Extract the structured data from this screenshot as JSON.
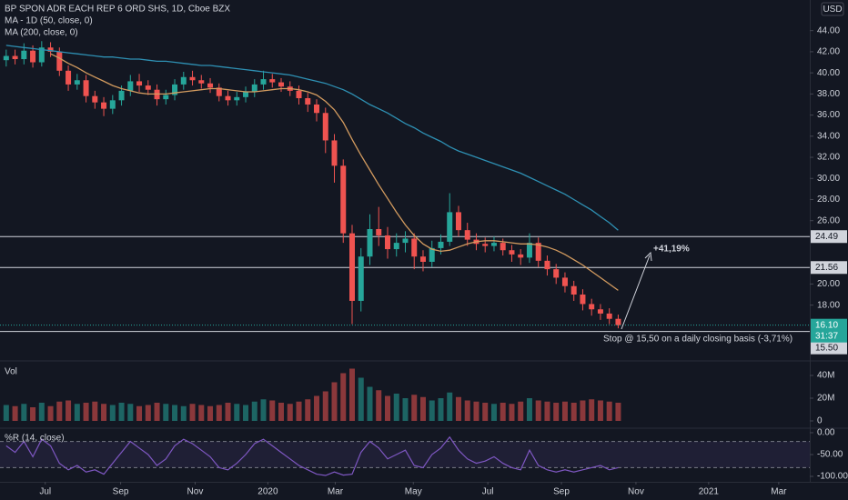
{
  "chart_data": [
    {
      "type": "candlestick",
      "title": "BP SPON ADR EACH REP 6 ORD SHS, 1D, Cboe BZX",
      "currency": "USD",
      "up_color": "#26a69a",
      "down_color": "#ef5350",
      "open": [
        41.2,
        41.6,
        41.3,
        42.1,
        41.0,
        42.4,
        42.0,
        40.2,
        38.9,
        39.3,
        37.8,
        37.2,
        36.6,
        37.4,
        38.3,
        39.2,
        38.8,
        38.4,
        37.5,
        37.9,
        38.9,
        39.6,
        39.3,
        39.0,
        38.6,
        37.8,
        37.4,
        37.7,
        38.2,
        38.9,
        39.4,
        39.1,
        38.7,
        38.3,
        37.6,
        37.0,
        36.2,
        33.6,
        31.2,
        24.8,
        18.4,
        22.6,
        25.2,
        24.6,
        23.3,
        23.9,
        24.3,
        22.6,
        22.1,
        23.4,
        24.0,
        26.8,
        25.1,
        24.2,
        23.8,
        23.6,
        23.9,
        23.2,
        22.8,
        22.5,
        23.9,
        22.2,
        21.4,
        20.6,
        19.8,
        19.0,
        18.1,
        17.6,
        17.2,
        16.7
      ],
      "high": [
        42.2,
        42.2,
        42.8,
        42.6,
        43.0,
        42.9,
        42.4,
        40.7,
        39.9,
        39.8,
        38.3,
        37.7,
        37.9,
        38.8,
        39.8,
        39.9,
        39.3,
        38.9,
        38.4,
        39.4,
        40.1,
        40.2,
        39.8,
        39.5,
        39.0,
        38.3,
        38.2,
        38.7,
        39.4,
        40.2,
        39.9,
        39.5,
        39.2,
        38.8,
        38.1,
        37.5,
        36.7,
        34.2,
        31.8,
        25.6,
        23.4,
        26.6,
        27.3,
        25.4,
        24.8,
        25.0,
        24.8,
        23.2,
        24.1,
        24.7,
        28.6,
        27.4,
        25.8,
        24.8,
        24.4,
        24.5,
        24.3,
        23.7,
        23.3,
        24.8,
        24.4,
        22.7,
        21.9,
        21.1,
        20.3,
        19.5,
        18.6,
        18.1,
        17.7,
        17.1
      ],
      "low": [
        40.6,
        40.8,
        40.8,
        40.5,
        40.6,
        41.5,
        39.7,
        38.3,
        38.4,
        37.2,
        36.6,
        35.9,
        36.1,
        36.9,
        37.8,
        38.2,
        37.9,
        36.9,
        37.0,
        37.4,
        38.4,
        38.8,
        38.5,
        38.1,
        37.3,
        36.9,
        36.9,
        37.2,
        37.7,
        38.4,
        38.6,
        38.2,
        37.8,
        37.0,
        36.3,
        35.4,
        32.4,
        29.6,
        23.9,
        16.2,
        17.4,
        21.8,
        23.6,
        22.4,
        22.6,
        23.0,
        21.4,
        21.2,
        21.6,
        22.8,
        23.6,
        24.5,
        23.6,
        23.2,
        23.0,
        23.1,
        22.7,
        22.1,
        21.8,
        22.0,
        21.6,
        20.8,
        20.0,
        19.2,
        18.4,
        17.5,
        17.0,
        16.6,
        16.2,
        15.8
      ],
      "close": [
        41.6,
        41.3,
        42.1,
        41.0,
        42.4,
        42.0,
        40.2,
        38.9,
        39.3,
        37.8,
        37.2,
        36.6,
        37.4,
        38.3,
        39.2,
        38.8,
        38.4,
        37.5,
        37.9,
        38.9,
        39.6,
        39.3,
        39.0,
        38.6,
        37.8,
        37.4,
        37.7,
        38.2,
        38.9,
        39.4,
        39.1,
        38.7,
        38.3,
        37.6,
        37.0,
        36.2,
        33.6,
        31.2,
        24.8,
        18.4,
        22.6,
        25.2,
        24.6,
        23.3,
        23.9,
        24.3,
        22.6,
        22.1,
        23.4,
        24.0,
        26.8,
        25.1,
        24.2,
        23.8,
        23.6,
        23.9,
        23.2,
        22.8,
        22.5,
        23.9,
        22.2,
        21.4,
        20.6,
        19.8,
        19.0,
        18.1,
        17.6,
        17.2,
        16.7,
        16.1
      ],
      "series": [
        {
          "name": "MA - 1D (50, close, 0)",
          "color": "#d39b5f",
          "values": [
            null,
            null,
            null,
            null,
            null,
            41.8,
            41.4,
            40.9,
            40.5,
            40.0,
            39.6,
            39.2,
            38.8,
            38.5,
            38.3,
            38.1,
            38.0,
            38.0,
            38.0,
            38.1,
            38.2,
            38.3,
            38.4,
            38.5,
            38.5,
            38.4,
            38.3,
            38.2,
            38.2,
            38.3,
            38.4,
            38.5,
            38.5,
            38.4,
            38.2,
            37.9,
            37.3,
            36.5,
            35.3,
            33.7,
            32.2,
            30.8,
            29.4,
            28.1,
            26.8,
            25.6,
            24.6,
            23.8,
            23.3,
            23.1,
            23.2,
            23.5,
            23.8,
            24.0,
            24.1,
            24.1,
            24.0,
            23.9,
            23.8,
            23.8,
            23.7,
            23.5,
            23.2,
            22.8,
            22.3,
            21.8,
            21.2,
            20.6,
            20.0,
            19.4
          ]
        },
        {
          "name": "MA (200, close, 0)",
          "color": "#2e90b3",
          "values": [
            42.6,
            42.5,
            42.4,
            42.3,
            42.2,
            42.1,
            42.0,
            41.9,
            41.8,
            41.7,
            41.6,
            41.5,
            41.5,
            41.4,
            41.3,
            41.3,
            41.2,
            41.1,
            41.1,
            41.0,
            40.9,
            40.8,
            40.7,
            40.7,
            40.6,
            40.5,
            40.4,
            40.3,
            40.2,
            40.1,
            40.0,
            39.9,
            39.8,
            39.6,
            39.4,
            39.2,
            39.0,
            38.7,
            38.4,
            38.0,
            37.5,
            37.0,
            36.6,
            36.2,
            35.7,
            35.2,
            34.8,
            34.3,
            33.9,
            33.5,
            33.0,
            32.6,
            32.3,
            32.0,
            31.7,
            31.4,
            31.1,
            30.8,
            30.5,
            30.1,
            29.7,
            29.3,
            28.9,
            28.5,
            28.0,
            27.5,
            27.0,
            26.4,
            25.8,
            25.1
          ]
        }
      ],
      "levels": [
        24.49,
        21.56,
        {
          "value": 15.5,
          "label": "15.50"
        }
      ],
      "last_price": {
        "value": 16.1,
        "label": "16.10"
      },
      "countdown": "31:37",
      "annotations": [
        "+41,19%",
        "Stop @ 15,50 on a daily closing basis (-3,71%)"
      ],
      "ylim": [
        12.8,
        46.9
      ],
      "yticks": [
        {
          "value": 44,
          "label": "44.00"
        },
        {
          "value": 42,
          "label": "42.00"
        },
        {
          "value": 40,
          "label": "40.00"
        },
        {
          "value": 38,
          "label": "38.00"
        },
        {
          "value": 36,
          "label": "36.00"
        },
        {
          "value": 34,
          "label": "34.00"
        },
        {
          "value": 32,
          "label": "32.00"
        },
        {
          "value": 30,
          "label": "30.00"
        },
        {
          "value": 28,
          "label": "28.00"
        },
        {
          "value": 26,
          "label": "26.00"
        },
        {
          "value": 20,
          "label": "20.00"
        },
        {
          "value": 18,
          "label": "18.00"
        }
      ],
      "xlim": [
        -0.7,
        90.6
      ],
      "xticks": [
        {
          "value": 4.4,
          "label": "Jul"
        },
        {
          "value": 12.9,
          "label": "Sep"
        },
        {
          "value": 21.3,
          "label": "Nov"
        },
        {
          "value": 29.5,
          "label": "2020"
        },
        {
          "value": 37.1,
          "label": "Mar"
        },
        {
          "value": 45.9,
          "label": "May"
        },
        {
          "value": 54.3,
          "label": "Jul"
        },
        {
          "value": 62.6,
          "label": "Sep"
        },
        {
          "value": 71.0,
          "label": "Nov"
        },
        {
          "value": 79.2,
          "label": "2021"
        },
        {
          "value": 87.1,
          "label": "Mar"
        }
      ]
    },
    {
      "type": "bar",
      "title": "Vol",
      "values": [
        14,
        13,
        15,
        12,
        16,
        13,
        17,
        18,
        15,
        16,
        17,
        15,
        14,
        16,
        15,
        13,
        14,
        16,
        15,
        14,
        13,
        15,
        14,
        13,
        14,
        16,
        15,
        14,
        17,
        19,
        18,
        16,
        15,
        17,
        19,
        22,
        26,
        34,
        42,
        46,
        38,
        30,
        27,
        22,
        24,
        20,
        23,
        21,
        18,
        20,
        25,
        21,
        18,
        17,
        16,
        15,
        16,
        15,
        17,
        20,
        18,
        17,
        16,
        17,
        16,
        18,
        19,
        18,
        17,
        16
      ],
      "ylim": [
        -5.6,
        52
      ],
      "yticks": [
        {
          "value": 40,
          "label": "40M"
        },
        {
          "value": 20,
          "label": "20M"
        },
        0
      ]
    },
    {
      "type": "line",
      "title": "%R (14, close)",
      "color": "#7e57c2",
      "values": [
        -30,
        -45,
        -20,
        -55,
        -15,
        -30,
        -70,
        -85,
        -75,
        -90,
        -85,
        -95,
        -70,
        -45,
        -20,
        -35,
        -50,
        -75,
        -60,
        -30,
        -15,
        -25,
        -40,
        -55,
        -80,
        -85,
        -70,
        -50,
        -25,
        -15,
        -30,
        -45,
        -60,
        -75,
        -85,
        -95,
        -98,
        -90,
        -97,
        -95,
        -45,
        -20,
        -35,
        -60,
        -50,
        -40,
        -75,
        -80,
        -50,
        -35,
        -10,
        -40,
        -60,
        -70,
        -65,
        -55,
        -70,
        -80,
        -85,
        -40,
        -75,
        -85,
        -90,
        -85,
        -90,
        -85,
        -80,
        -75,
        -85,
        -80
      ],
      "levels": [
        -20,
        -80
      ],
      "ylim": [
        -112.5,
        8.3
      ],
      "yticks": [
        {
          "value": 0,
          "label": "0.00"
        },
        {
          "value": -50,
          "label": "-50.00"
        },
        {
          "value": -100,
          "label": "-100.00"
        }
      ]
    }
  ]
}
